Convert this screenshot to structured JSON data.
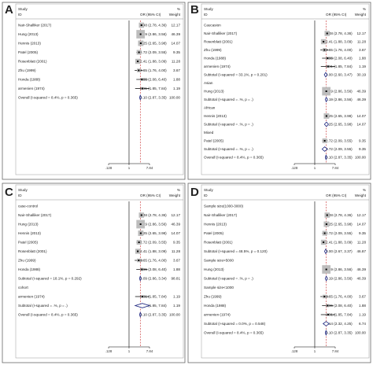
{
  "headers": {
    "study": "Study",
    "id": "ID",
    "or": "OR (95% CI)",
    "pct": "%",
    "weight": "Weight"
  },
  "chart_data": [
    {
      "panel": "A",
      "type": "forest",
      "ticks": [
        ".128",
        "1",
        "7.84"
      ],
      "rows": [
        {
          "kind": "study",
          "label": "Nair-Shalliker (2017)",
          "or": 3.48,
          "lo": 2.78,
          "hi": 4.36,
          "text": "3.48 (2.78, 4.36)",
          "weight": "12.17"
        },
        {
          "kind": "study",
          "label": "Hung (2013)",
          "or": 3.19,
          "lo": 2.86,
          "hi": 3.56,
          "text": "3.19 (2.86, 3.56)",
          "weight": "46.39"
        },
        {
          "kind": "study",
          "label": "Hennis (2013)",
          "or": 3.25,
          "lo": 2.65,
          "hi": 3.98,
          "text": "3.25 (2.65, 3.98)",
          "weight": "14.07"
        },
        {
          "kind": "study",
          "label": "Patel (2005)",
          "or": 2.72,
          "lo": 2.09,
          "hi": 3.55,
          "text": "2.72 (2.09, 3.55)",
          "weight": "9.35"
        },
        {
          "kind": "study",
          "label": "Rosenblatt (2001)",
          "or": 2.41,
          "lo": 1.88,
          "hi": 3.09,
          "text": "2.41 (1.88, 3.09)",
          "weight": "11.28"
        },
        {
          "kind": "study",
          "label": "Zhu (1999)",
          "or": 2.65,
          "lo": 1.76,
          "hi": 4.0,
          "text": "2.65 (1.76, 4.00)",
          "weight": "3.67"
        },
        {
          "kind": "study",
          "label": "Honda (1988)",
          "or": 3.65,
          "lo": 2.08,
          "hi": 6.4,
          "text": "3.65 (2.08, 6.40)",
          "weight": "1.88"
        },
        {
          "kind": "study",
          "label": "armenien (1974)",
          "or": 3.81,
          "lo": 1.85,
          "hi": 7.84,
          "text": "3.81 (1.85, 7.84)",
          "weight": "1.19"
        },
        {
          "kind": "overall",
          "label": "Overall  (I-squared = 8.4%, p = 0.365)",
          "or": 3.1,
          "lo": 2.87,
          "hi": 3.35,
          "text": "3.10 (2.87, 3.35)",
          "weight": "100.00"
        }
      ]
    },
    {
      "panel": "B",
      "type": "forest",
      "ticks": [
        ".128",
        "1",
        "7.84"
      ],
      "rows": [
        {
          "kind": "group",
          "label": "Caucasion"
        },
        {
          "kind": "study",
          "label": "Nair-Shalliker (2017)",
          "or": 3.48,
          "lo": 2.78,
          "hi": 4.36,
          "text": "3.48 (2.78, 4.36)",
          "weight": "12.17"
        },
        {
          "kind": "study",
          "label": "Rosenblatt (2001)",
          "or": 2.41,
          "lo": 1.88,
          "hi": 3.09,
          "text": "2.41 (1.88, 3.09)",
          "weight": "11.28"
        },
        {
          "kind": "study",
          "label": "Zhu (1999)",
          "or": 2.65,
          "lo": 1.76,
          "hi": 4.0,
          "text": "2.65 (1.76, 4.00)",
          "weight": "3.67"
        },
        {
          "kind": "study",
          "label": "Honda (1988)",
          "or": 3.65,
          "lo": 2.08,
          "hi": 6.4,
          "text": "3.65 (2.08, 6.40)",
          "weight": "1.88"
        },
        {
          "kind": "study",
          "label": "armenien (1974)",
          "or": 3.81,
          "lo": 1.85,
          "hi": 7.84,
          "text": "3.81 (1.85, 7.84)",
          "weight": "1.19"
        },
        {
          "kind": "subtotal",
          "label": "Subtotal  (I-squared = 33.1%, p = 0.201)",
          "or": 3.0,
          "lo": 2.6,
          "hi": 3.47,
          "text": "3.00 (2.60, 3.47)",
          "weight": "30.19"
        },
        {
          "kind": "group",
          "label": "Asian"
        },
        {
          "kind": "study",
          "label": "Hung (2013)",
          "or": 3.19,
          "lo": 2.86,
          "hi": 3.56,
          "text": "3.19 (2.86, 3.56)",
          "weight": "46.39"
        },
        {
          "kind": "subtotal",
          "label": "Subtotal  (I-squared = .%, p = .)",
          "or": 3.19,
          "lo": 2.86,
          "hi": 3.56,
          "text": "3.19 (2.86, 3.56)",
          "weight": "46.39"
        },
        {
          "kind": "group",
          "label": "African"
        },
        {
          "kind": "study",
          "label": "Hennis (2013)",
          "or": 3.25,
          "lo": 2.65,
          "hi": 3.98,
          "text": "3.25 (2.65, 3.98)",
          "weight": "14.07"
        },
        {
          "kind": "subtotal",
          "label": "Subtotal  (I-squared = .%, p = .)",
          "or": 3.25,
          "lo": 2.65,
          "hi": 3.98,
          "text": "3.25 (2.65, 3.98)",
          "weight": "14.07"
        },
        {
          "kind": "group",
          "label": "Mixed"
        },
        {
          "kind": "study",
          "label": "Patel (2005)",
          "or": 2.72,
          "lo": 2.09,
          "hi": 3.55,
          "text": "2.72 (2.09, 3.55)",
          "weight": "9.35"
        },
        {
          "kind": "subtotal",
          "label": "Subtotal  (I-squared = .%, p = .)",
          "or": 2.72,
          "lo": 2.09,
          "hi": 3.55,
          "text": "2.72 (2.09, 3.55)",
          "weight": "9.35"
        },
        {
          "kind": "overall",
          "label": "Overall  (I-squared = 8.4%, p = 0.365)",
          "or": 3.1,
          "lo": 2.87,
          "hi": 3.35,
          "text": "3.10 (2.87, 3.35)",
          "weight": "100.00"
        }
      ]
    },
    {
      "panel": "C",
      "type": "forest",
      "ticks": [
        ".128",
        "1",
        "7.84"
      ],
      "rows": [
        {
          "kind": "group",
          "label": "case-control"
        },
        {
          "kind": "study",
          "label": "Nair-Shalliker (2017)",
          "or": 3.48,
          "lo": 2.78,
          "hi": 4.36,
          "text": "3.48 (2.78, 4.36)",
          "weight": "12.17"
        },
        {
          "kind": "study",
          "label": "Hung (2013)",
          "or": 3.19,
          "lo": 2.86,
          "hi": 3.56,
          "text": "3.19 (2.86, 3.56)",
          "weight": "46.39"
        },
        {
          "kind": "study",
          "label": "Hennis (2013)",
          "or": 3.25,
          "lo": 2.65,
          "hi": 3.98,
          "text": "3.25 (2.65, 3.98)",
          "weight": "14.07"
        },
        {
          "kind": "study",
          "label": "Patel (2005)",
          "or": 2.72,
          "lo": 2.09,
          "hi": 3.55,
          "text": "2.72 (2.09, 3.55)",
          "weight": "9.35"
        },
        {
          "kind": "study",
          "label": "Rosenblatt (2001)",
          "or": 2.41,
          "lo": 1.88,
          "hi": 3.09,
          "text": "2.41 (1.88, 3.09)",
          "weight": "11.28"
        },
        {
          "kind": "study",
          "label": "Zhu (1999)",
          "or": 2.65,
          "lo": 1.76,
          "hi": 4.0,
          "text": "2.65 (1.76, 4.00)",
          "weight": "3.67"
        },
        {
          "kind": "study",
          "label": "Honda (1988)",
          "or": 3.65,
          "lo": 2.08,
          "hi": 6.4,
          "text": "3.65 (2.08, 6.40)",
          "weight": "1.88"
        },
        {
          "kind": "subtotal",
          "label": "Subtotal  (I-squared = 18.1%, p = 0.292)",
          "or": 3.09,
          "lo": 2.86,
          "hi": 3.34,
          "text": "3.09 (2.86, 3.34)",
          "weight": "98.81"
        },
        {
          "kind": "group",
          "label": "cohort"
        },
        {
          "kind": "study",
          "label": "armenien (1974)",
          "or": 3.81,
          "lo": 1.85,
          "hi": 7.84,
          "text": "3.81 (1.85, 7.84)",
          "weight": "1.19"
        },
        {
          "kind": "subtotal",
          "label": "Subtotal  (I-squared = .%, p = .)",
          "or": 3.81,
          "lo": 1.85,
          "hi": 7.84,
          "text": "3.81 (1.85, 7.84)",
          "weight": "1.19"
        },
        {
          "kind": "overall",
          "label": "Overall  (I-squared = 8.4%, p = 0.365)",
          "or": 3.1,
          "lo": 2.87,
          "hi": 3.35,
          "text": "3.10 (2.87, 3.35)",
          "weight": "100.00"
        }
      ]
    },
    {
      "panel": "D",
      "type": "forest",
      "ticks": [
        ".128",
        "1",
        "7.84"
      ],
      "rows": [
        {
          "kind": "group",
          "label": "Sample size(1000-3000)"
        },
        {
          "kind": "study",
          "label": "Nair-Shalliker (2017)",
          "or": 3.48,
          "lo": 2.78,
          "hi": 4.36,
          "text": "3.48 (2.78, 4.36)",
          "weight": "12.17"
        },
        {
          "kind": "study",
          "label": "Hennis (2013)",
          "or": 3.25,
          "lo": 2.65,
          "hi": 3.98,
          "text": "3.25 (2.65, 3.98)",
          "weight": "14.07"
        },
        {
          "kind": "study",
          "label": "Patel (2005)",
          "or": 2.72,
          "lo": 2.09,
          "hi": 3.55,
          "text": "2.72 (2.09, 3.55)",
          "weight": "9.35"
        },
        {
          "kind": "study",
          "label": "Rosenblatt (2001)",
          "or": 2.41,
          "lo": 1.88,
          "hi": 3.09,
          "text": "2.41 (1.88, 3.09)",
          "weight": "11.28"
        },
        {
          "kind": "subtotal",
          "label": "Subtotal  (I-squared = 48.5%, p = 0.120)",
          "or": 3.0,
          "lo": 2.67,
          "hi": 3.37,
          "text": "3.00 (2.67, 3.37)",
          "weight": "46.87"
        },
        {
          "kind": "group",
          "label": "Sample size>5000"
        },
        {
          "kind": "study",
          "label": "Hung (2013)",
          "or": 3.19,
          "lo": 2.86,
          "hi": 3.56,
          "text": "3.19 (2.86, 3.56)",
          "weight": "46.39"
        },
        {
          "kind": "subtotal",
          "label": "Subtotal  (I-squared = .%, p = .)",
          "or": 3.19,
          "lo": 2.86,
          "hi": 3.56,
          "text": "3.19 (2.86, 3.56)",
          "weight": "46.39"
        },
        {
          "kind": "group",
          "label": "Sample size<1000"
        },
        {
          "kind": "study",
          "label": "Zhu (1999)",
          "or": 2.65,
          "lo": 1.76,
          "hi": 4.0,
          "text": "2.65 (1.76, 4.00)",
          "weight": "3.67"
        },
        {
          "kind": "study",
          "label": "Honda (1988)",
          "or": 3.65,
          "lo": 2.08,
          "hi": 6.4,
          "text": "3.65 (2.08, 6.40)",
          "weight": "1.88"
        },
        {
          "kind": "study",
          "label": "armenien (1974)",
          "or": 3.81,
          "lo": 1.85,
          "hi": 7.84,
          "text": "3.81 (1.85, 7.84)",
          "weight": "1.19"
        },
        {
          "kind": "subtotal",
          "label": "Subtotal  (I-squared = 0.0%, p = 0.548)",
          "or": 3.14,
          "lo": 2.32,
          "hi": 4.25,
          "text": "3.14 (2.32, 4.25)",
          "weight": "6.74"
        },
        {
          "kind": "overall",
          "label": "Overall  (I-squared = 8.4%, p = 0.365)",
          "or": 3.1,
          "lo": 2.87,
          "hi": 3.35,
          "text": "3.10 (2.87, 3.35)",
          "weight": "100.00"
        }
      ]
    }
  ]
}
